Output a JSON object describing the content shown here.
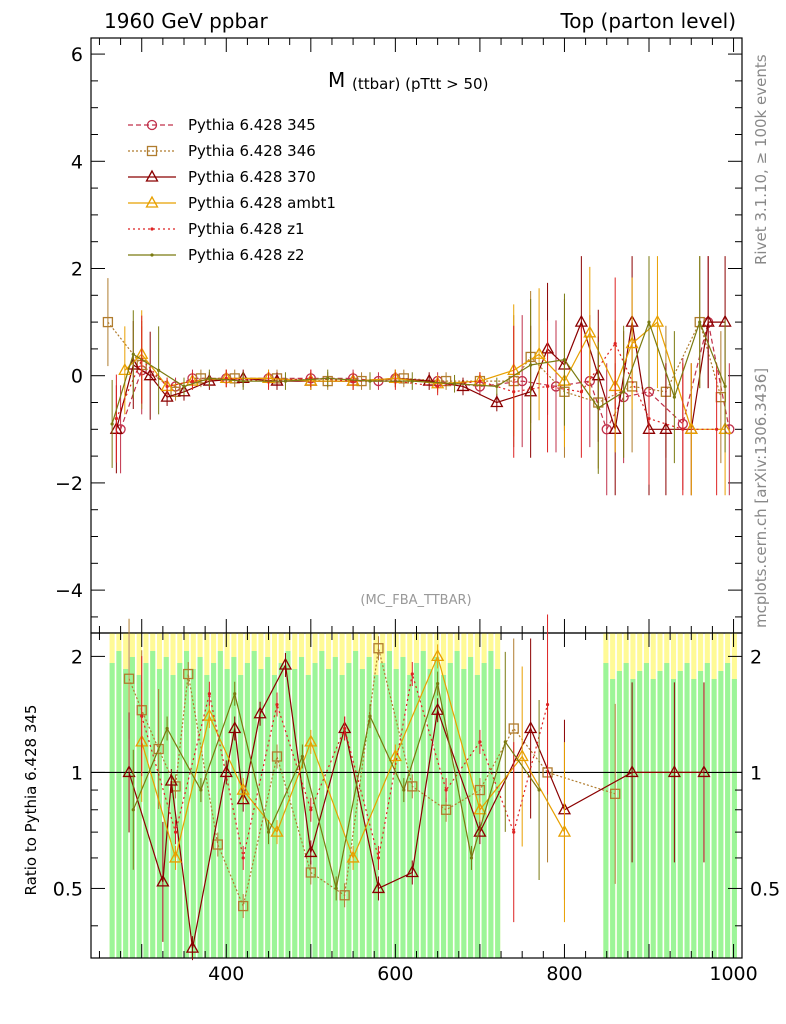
{
  "header": {
    "left": "1960 GeV ppbar",
    "right": "Top (parton level)"
  },
  "plot_title_main": "M",
  "plot_title_sub": "(ttbar) (pTtt > 50)",
  "side_right_top": "Rivet 3.1.10, ≥ 100k events",
  "side_right_bottom": "mcplots.cern.ch [arXiv:1306.3436]",
  "watermark": "(MC_FBA_TTBAR)",
  "ratio_ylabel": "Ratio to Pythia 6.428 345",
  "colors": {
    "band_green": "#9cf598",
    "band_yellow": "#fffa96"
  },
  "chart_data": [
    {
      "type": "line",
      "title": "M (ttbar) (pTtt > 50)",
      "xlim": [
        240,
        1010
      ],
      "ylim": [
        -4.8,
        6.3
      ],
      "yticks": [
        -4,
        -2,
        0,
        2,
        4,
        6
      ],
      "ytick_labels": [
        "−4",
        "−2",
        "0",
        "2",
        "4",
        "6"
      ],
      "legend_position": "top-left",
      "series": [
        {
          "name": "Pythia 6.428 345",
          "color": "#c0304a",
          "marker": "circle",
          "dash": "5,3",
          "x": [
            275,
            300,
            340,
            360,
            400,
            450,
            500,
            550,
            580,
            600,
            650,
            700,
            750,
            790,
            830,
            850,
            870,
            900,
            940,
            970,
            995
          ],
          "y": [
            -1.0,
            0.1,
            -0.2,
            -0.05,
            -0.05,
            -0.05,
            -0.05,
            -0.05,
            -0.1,
            -0.05,
            -0.1,
            -0.2,
            -0.1,
            -0.2,
            -0.1,
            -1.0,
            -0.4,
            -0.3,
            -0.9,
            1.0,
            -1.0
          ]
        },
        {
          "name": "Pythia 6.428 346",
          "color": "#b07c2e",
          "marker": "square",
          "dash": "2,2",
          "x": [
            260,
            300,
            340,
            370,
            410,
            460,
            520,
            560,
            610,
            660,
            700,
            740,
            760,
            800,
            840,
            880,
            920,
            960,
            985
          ],
          "y": [
            1.0,
            0.2,
            -0.3,
            -0.05,
            -0.05,
            -0.05,
            -0.1,
            -0.1,
            -0.05,
            -0.1,
            -0.1,
            -0.1,
            0.35,
            -0.3,
            -0.5,
            -0.2,
            -0.3,
            1.0,
            -0.4
          ]
        },
        {
          "name": "Pythia 6.428 370",
          "color": "#8b0000",
          "marker": "triangle",
          "dash": "",
          "x": [
            270,
            290,
            310,
            330,
            350,
            380,
            420,
            460,
            500,
            550,
            600,
            640,
            680,
            720,
            760,
            780,
            800,
            820,
            840,
            860,
            880,
            900,
            920,
            950,
            970,
            990
          ],
          "y": [
            -1.0,
            0.2,
            0.0,
            -0.4,
            -0.3,
            -0.1,
            -0.05,
            -0.1,
            -0.1,
            -0.1,
            -0.05,
            -0.1,
            -0.2,
            -0.5,
            -0.3,
            0.5,
            0.2,
            1.0,
            0.0,
            -1.0,
            1.0,
            -1.0,
            -1.0,
            -1.0,
            1.0,
            1.0
          ]
        },
        {
          "name": "Pythia 6.428 ambt1",
          "color": "#e8a000",
          "marker": "triangle",
          "dash": "",
          "x": [
            280,
            300,
            330,
            360,
            400,
            450,
            500,
            550,
            600,
            650,
            700,
            740,
            770,
            800,
            830,
            860,
            880,
            910,
            950,
            990
          ],
          "y": [
            0.1,
            0.4,
            -0.2,
            -0.1,
            -0.05,
            -0.05,
            -0.1,
            -0.1,
            -0.05,
            -0.15,
            -0.1,
            0.1,
            0.4,
            -0.1,
            0.8,
            -0.2,
            0.6,
            1.0,
            -1.0,
            -1.0
          ]
        },
        {
          "name": "Pythia 6.428 z1",
          "color": "#dd2222",
          "marker": "dot",
          "dash": "2,3",
          "x": [
            270,
            300,
            330,
            360,
            400,
            450,
            500,
            550,
            600,
            650,
            700,
            740,
            780,
            820,
            860,
            900,
            940,
            980
          ],
          "y": [
            -0.8,
            0.3,
            -0.2,
            -0.1,
            -0.05,
            -0.1,
            -0.05,
            -0.1,
            -0.1,
            -0.2,
            -0.1,
            -0.3,
            -0.2,
            -0.3,
            0.6,
            -0.8,
            -1.0,
            -1.0
          ]
        },
        {
          "name": "Pythia 6.428 z2",
          "color": "#7a7a10",
          "marker": "dot",
          "dash": "",
          "x": [
            265,
            290,
            320,
            350,
            380,
            420,
            470,
            520,
            570,
            620,
            670,
            720,
            760,
            800,
            840,
            870,
            900,
            930,
            960,
            990
          ],
          "y": [
            -0.9,
            0.4,
            0.1,
            -0.2,
            -0.05,
            -0.1,
            -0.1,
            -0.05,
            -0.1,
            -0.1,
            -0.15,
            -0.2,
            0.2,
            0.3,
            -0.6,
            -0.3,
            1.0,
            -0.4,
            1.0,
            -0.2
          ]
        }
      ]
    },
    {
      "type": "line",
      "ylabel": "Ratio to Pythia 6.428 345",
      "xlim": [
        240,
        1010
      ],
      "ylim": [
        0.33,
        2.3
      ],
      "scale": "log",
      "xticks": [
        400,
        600,
        800,
        1000
      ],
      "xtick_labels": [
        "400",
        "600",
        "800",
        "1000"
      ],
      "yticks": [
        0.5,
        1,
        2
      ],
      "ytick_labels": [
        "0.5",
        "1",
        "2"
      ],
      "reference_line": 1,
      "series": [
        {
          "name": "Pythia 6.428 346",
          "color": "#b07c2e",
          "marker": "square",
          "dash": "2,2",
          "x": [
            285,
            300,
            320,
            340,
            355,
            390,
            420,
            460,
            500,
            540,
            580,
            620,
            660,
            700,
            740,
            780,
            860
          ],
          "y": [
            1.75,
            1.45,
            1.15,
            0.92,
            1.8,
            0.65,
            0.45,
            1.1,
            0.55,
            0.48,
            2.1,
            0.92,
            0.8,
            0.9,
            1.3,
            1.0,
            0.88
          ]
        },
        {
          "name": "Pythia 6.428 370",
          "color": "#8b0000",
          "marker": "triangle",
          "dash": "",
          "x": [
            285,
            325,
            335,
            360,
            400,
            410,
            420,
            440,
            470,
            500,
            540,
            580,
            620,
            650,
            700,
            760,
            800,
            880,
            930,
            965
          ],
          "y": [
            1.0,
            0.52,
            0.95,
            0.35,
            1.0,
            1.3,
            0.85,
            1.42,
            1.9,
            0.62,
            1.3,
            0.5,
            0.55,
            1.45,
            0.7,
            1.3,
            0.8,
            1.0,
            1.0,
            1.0
          ]
        },
        {
          "name": "Pythia 6.428 ambt1",
          "color": "#e8a000",
          "marker": "triangle",
          "dash": "",
          "x": [
            300,
            340,
            380,
            420,
            460,
            500,
            550,
            600,
            650,
            700,
            750,
            800
          ],
          "y": [
            1.2,
            0.6,
            1.4,
            0.9,
            0.7,
            1.2,
            0.6,
            1.1,
            2.0,
            0.8,
            1.1,
            0.7
          ]
        },
        {
          "name": "Pythia 6.428 z1",
          "color": "#dd2222",
          "marker": "dot",
          "dash": "2,3",
          "x": [
            300,
            340,
            380,
            420,
            460,
            500,
            540,
            580,
            620,
            660,
            700,
            740,
            780
          ],
          "y": [
            1.4,
            0.7,
            1.6,
            0.6,
            1.5,
            0.8,
            1.3,
            0.6,
            1.8,
            0.9,
            1.2,
            0.7,
            1.5
          ]
        },
        {
          "name": "Pythia 6.428 z2",
          "color": "#7a7a10",
          "marker": "dot",
          "dash": "",
          "x": [
            290,
            330,
            370,
            410,
            450,
            490,
            530,
            570,
            610,
            650,
            690,
            730,
            770
          ],
          "y": [
            0.8,
            1.3,
            0.9,
            1.6,
            0.7,
            1.1,
            0.5,
            1.4,
            0.9,
            1.7,
            0.6,
            1.2,
            0.9
          ]
        }
      ]
    }
  ]
}
